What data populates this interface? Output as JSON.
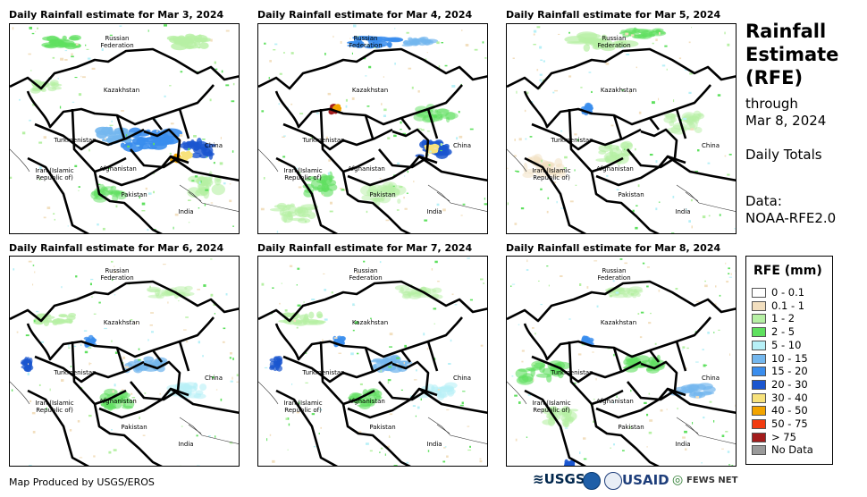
{
  "panels": [
    {
      "title": "Daily Rainfall estimate for Mar 3, 2024",
      "rain": "heavy-east"
    },
    {
      "title": "Daily Rainfall estimate for Mar 4, 2024",
      "rain": "north-east"
    },
    {
      "title": "Daily Rainfall estimate for Mar 5, 2024",
      "rain": "light"
    },
    {
      "title": "Daily Rainfall estimate for Mar 6, 2024",
      "rain": "light-mid"
    },
    {
      "title": "Daily Rainfall estimate for Mar 7, 2024",
      "rain": "light-mid"
    },
    {
      "title": "Daily Rainfall estimate for Mar 8, 2024",
      "rain": "south-west"
    }
  ],
  "map_labels": {
    "russia": "Russian\nFederation",
    "kazakhstan": "Kazakhstan",
    "turkmenistan": "Turkmenistan",
    "china": "China",
    "iran": "Iran  (Islamic\nRepublic of)",
    "afghanistan": "Afghanistan",
    "pakistan": "Pakistan",
    "india": "India"
  },
  "side": {
    "title_lines": [
      "Rainfall",
      "Estimate",
      "(RFE)"
    ],
    "through_label": "through",
    "through_date": "Mar 8, 2024",
    "totals": "Daily Totals",
    "data_label": "Data:",
    "data_source": "NOAA-RFE2.0"
  },
  "legend": {
    "title": "RFE (mm)",
    "items": [
      {
        "label": "0 - 0.1",
        "color": "#ffffff"
      },
      {
        "label": "0.1 - 1",
        "color": "#f2dfbf"
      },
      {
        "label": "1 - 2",
        "color": "#b6f0a4"
      },
      {
        "label": "2 - 5",
        "color": "#5fe05f"
      },
      {
        "label": "5 - 10",
        "color": "#b7f0f7"
      },
      {
        "label": "10 - 15",
        "color": "#74b7ee"
      },
      {
        "label": "15 - 20",
        "color": "#3a8ded"
      },
      {
        "label": "20 - 30",
        "color": "#1a55cf"
      },
      {
        "label": "30 - 40",
        "color": "#f7e27c"
      },
      {
        "label": "40 - 50",
        "color": "#f2a400"
      },
      {
        "label": "50 - 75",
        "color": "#f23b10"
      },
      {
        "label": "> 75",
        "color": "#a31c1c"
      },
      {
        "label": "No Data",
        "color": "#9a9a9a"
      }
    ]
  },
  "credit": "Map Produced by USGS/EROS",
  "logos": {
    "usgs": "USGS",
    "usaid": "USAID",
    "fews": "FEWS NET"
  }
}
